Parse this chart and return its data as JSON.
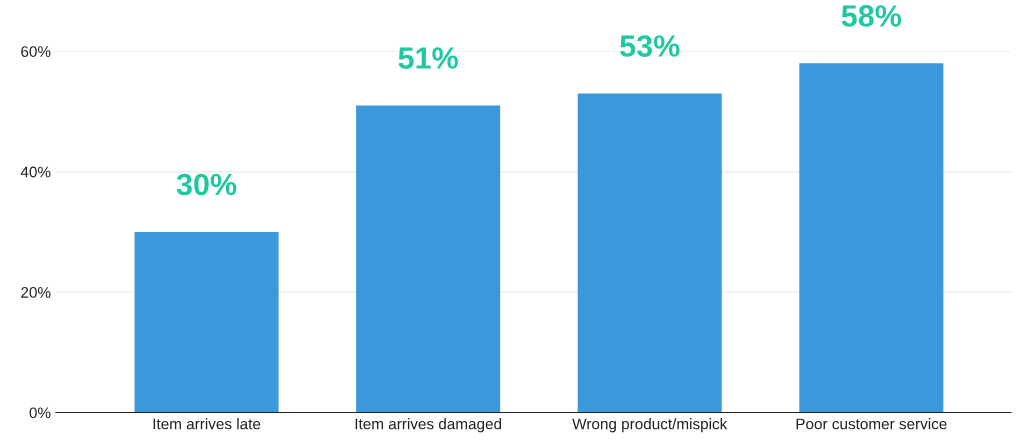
{
  "chart_data": {
    "type": "bar",
    "categories": [
      "Item arrives late",
      "Item arrives damaged",
      "Wrong product/mispick",
      "Poor customer service"
    ],
    "values": [
      30,
      51,
      53,
      58
    ],
    "color": "#3a98db",
    "value_labels": [
      "30%",
      "51%",
      "53%",
      "58%"
    ],
    "ylim": [
      0,
      60
    ],
    "yticks": [
      {
        "value": 0,
        "label": "0%"
      },
      {
        "value": 20,
        "label": "20%"
      },
      {
        "value": 40,
        "label": "40%"
      },
      {
        "value": 60,
        "label": "60%"
      }
    ],
    "grid": "y",
    "legend": false
  }
}
